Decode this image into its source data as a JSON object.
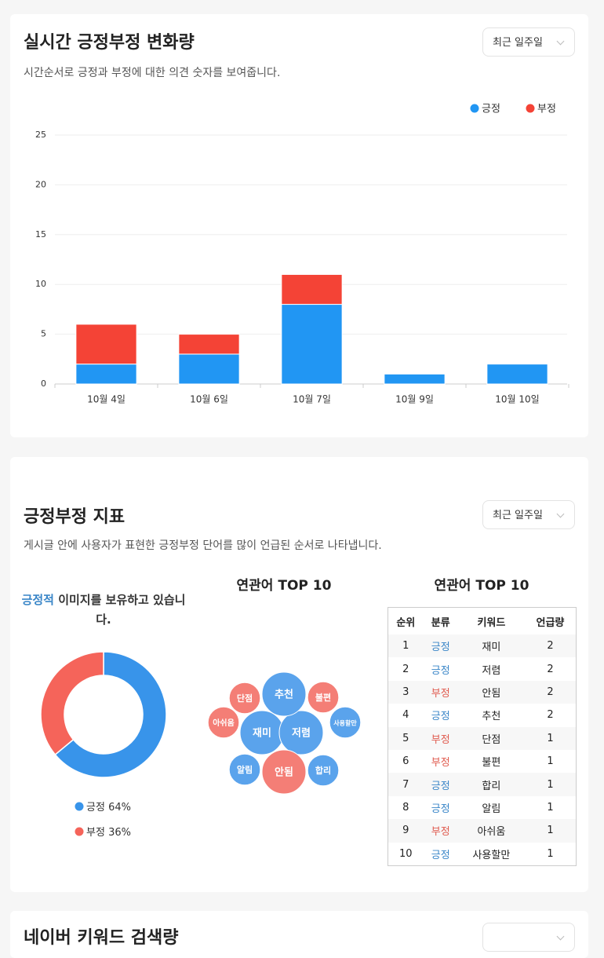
{
  "sections": [
    {
      "title": "실시간 긍정부정 변화량",
      "subtitle": "시간순서로 긍정과 부정에 대한 의견 숫자를 보여줍니다.",
      "dropdown": "최근 일주일"
    },
    {
      "title": "긍정부정 지표",
      "subtitle": "게시글 안에 사용자가 표현한 긍정부정 단어를 많이 언급된 순서로 나타냅니다.",
      "dropdown": "최근 일주일"
    },
    {
      "title": "네이버 키워드 검색량"
    }
  ],
  "chart_data": [
    {
      "type": "bar",
      "stacked": true,
      "categories": [
        "10월 4일",
        "10월 6일",
        "10월 7일",
        "10월 9일",
        "10월 10일"
      ],
      "series": [
        {
          "name": "긍정",
          "color": "#2196f3",
          "values": [
            2,
            3,
            8,
            1,
            2
          ]
        },
        {
          "name": "부정",
          "color": "#f44336",
          "values": [
            4,
            2,
            3,
            0,
            0
          ]
        }
      ],
      "ylim": [
        0,
        25
      ],
      "yticks": [
        0,
        5,
        10,
        15,
        20,
        25
      ],
      "grid": true,
      "legend": "top-right"
    },
    {
      "type": "pie",
      "donut": true,
      "headline": {
        "highlight": "긍정적",
        "text": " 이미지를 보유하고 있습니다."
      },
      "categories": [
        "긍정",
        "부정"
      ],
      "values": [
        64,
        36
      ],
      "value_labels": [
        "64%",
        "36%"
      ],
      "colors": [
        "#3894ea",
        "#f5645a"
      ]
    }
  ],
  "keywords": {
    "bubble_title": "연관어 TOP 10",
    "table_title": "연관어 TOP 10",
    "columns": [
      "순위",
      "분류",
      "키워드",
      "언급량"
    ],
    "colors": {
      "긍정": "#3a86c8",
      "부정": "#e05a4e"
    },
    "bubble_colors": {
      "긍정": "#5aa3ec",
      "부정": "#f47e76"
    },
    "rows": [
      [
        1,
        "긍정",
        "재미",
        2
      ],
      [
        2,
        "긍정",
        "저렴",
        2
      ],
      [
        3,
        "부정",
        "안됨",
        2
      ],
      [
        4,
        "긍정",
        "추천",
        2
      ],
      [
        5,
        "부정",
        "단점",
        1
      ],
      [
        6,
        "부정",
        "불편",
        1
      ],
      [
        7,
        "긍정",
        "합리",
        1
      ],
      [
        8,
        "긍정",
        "알림",
        1
      ],
      [
        9,
        "부정",
        "아쉬움",
        1
      ],
      [
        10,
        "긍정",
        "사용할만",
        1
      ]
    ]
  }
}
